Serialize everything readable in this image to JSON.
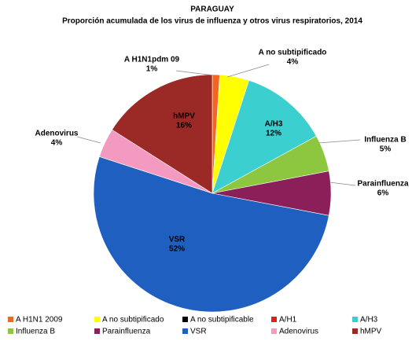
{
  "chart_data": {
    "type": "pie",
    "title": "PARAGUAY",
    "subtitle": "Proporción acumulada de los virus de influenza y otros virus respiratorios, 2014",
    "categories": [
      "A H1N1 2009",
      "A no subtipificado",
      "A no subtipificable",
      "A/H1",
      "A/H3",
      "Influenza  B",
      "Parainfluenza",
      "VSR",
      "Adenovirus",
      "hMPV"
    ],
    "labels": [
      "A H1N1pdm  09",
      "A no subtipificado",
      null,
      null,
      "A/H3",
      "Influenza  B",
      "Parainfluenza",
      "VSR",
      "Adenovirus",
      "hMPV"
    ],
    "values": [
      1,
      4,
      0,
      0,
      12,
      5,
      6,
      52,
      4,
      16
    ],
    "value_labels": [
      "1%",
      "4%",
      null,
      null,
      "12%",
      "5%",
      "6%",
      "52%",
      "4%",
      "16%"
    ],
    "colors": [
      "#f26522",
      "#ffff00",
      "#000000",
      "#e0201b",
      "#3ccfd0",
      "#8dc63f",
      "#8b1f5a",
      "#1f5fbf",
      "#f49ac1",
      "#9b2a26"
    ],
    "legend": "bottom"
  }
}
